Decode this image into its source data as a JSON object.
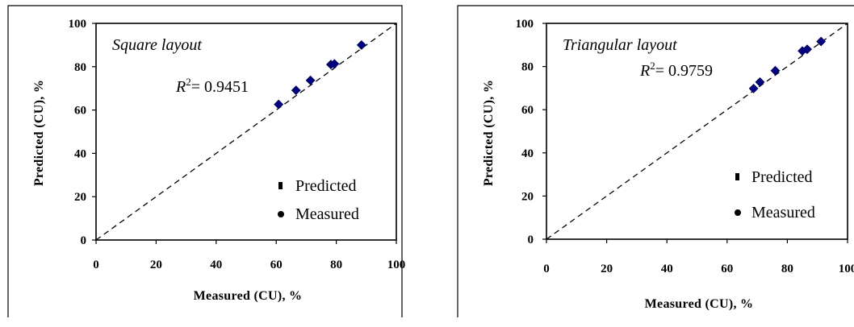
{
  "chart_data": [
    {
      "type": "scatter",
      "title": "",
      "annotation": "Square layout",
      "r2_prefix": "R",
      "r2_sup": "2",
      "r2_value": "= 0.9451",
      "xlabel": "Measured (CU), %",
      "ylabel": "Predicted (CU), %",
      "xlim": [
        0,
        100
      ],
      "ylim": [
        0,
        100
      ],
      "xticks": [
        "0",
        "20",
        "40",
        "60",
        "80",
        "100"
      ],
      "yticks": [
        "0",
        "20",
        "40",
        "60",
        "80",
        "100"
      ],
      "grid": false,
      "legend_position": "bottom-right",
      "legend": [
        {
          "label": "Predicted",
          "marker": "square"
        },
        {
          "label": "Measured",
          "marker": "circle"
        }
      ],
      "reference_line": "1:1 dashed",
      "marker_color": "#000080",
      "points": [
        {
          "x": 60.8,
          "y": 62.6
        },
        {
          "x": 66.6,
          "y": 69.1
        },
        {
          "x": 71.4,
          "y": 73.7
        },
        {
          "x": 78.2,
          "y": 81.0
        },
        {
          "x": 79.4,
          "y": 81.3
        },
        {
          "x": 88.4,
          "y": 90.0
        }
      ]
    },
    {
      "type": "scatter",
      "title": "",
      "annotation": "Triangular layout",
      "r2_prefix": "R",
      "r2_sup": "2",
      "r2_value": "= 0.9759",
      "xlabel": "Measured (CU), %",
      "ylabel": "Predicted (CU), %",
      "xlim": [
        0,
        100
      ],
      "ylim": [
        0,
        100
      ],
      "xticks": [
        "0",
        "20",
        "40",
        "60",
        "80",
        "100"
      ],
      "yticks": [
        "0",
        "20",
        "40",
        "60",
        "80",
        "100"
      ],
      "grid": false,
      "legend_position": "bottom-right",
      "legend": [
        {
          "label": "Predicted",
          "marker": "square"
        },
        {
          "label": "Measured",
          "marker": "circle"
        }
      ],
      "reference_line": "1:1 dashed",
      "marker_color": "#000080",
      "points": [
        {
          "x": 68.8,
          "y": 69.8
        },
        {
          "x": 70.9,
          "y": 72.8
        },
        {
          "x": 76.0,
          "y": 78.1
        },
        {
          "x": 85.0,
          "y": 87.2
        },
        {
          "x": 86.6,
          "y": 88.0
        },
        {
          "x": 91.2,
          "y": 91.6
        }
      ]
    }
  ]
}
